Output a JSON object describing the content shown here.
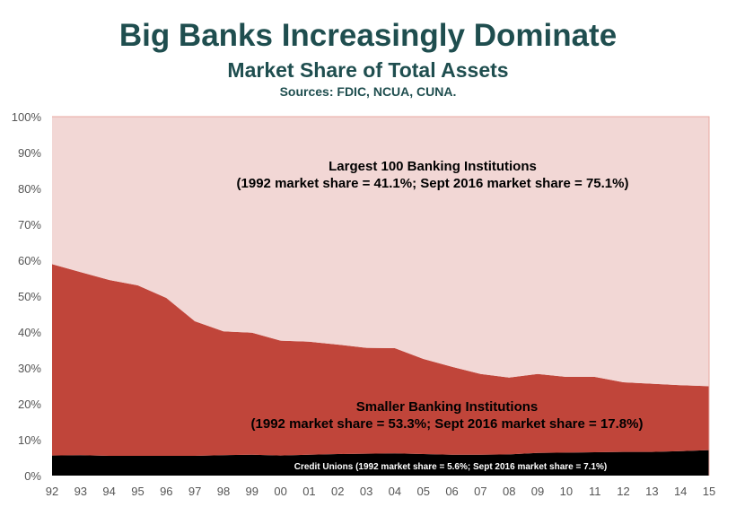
{
  "header": {
    "title": "Big Banks Increasingly Dominate",
    "subtitle": "Market Share of Total Assets",
    "sources": "Sources: FDIC, NCUA, CUNA."
  },
  "colors": {
    "largest": "#f2d7d5",
    "smaller": "#c0453a",
    "credit_unions": "#000000",
    "axis_text": "#555555",
    "title": "#1f4e4f"
  },
  "chart_data": {
    "type": "area",
    "stacked": true,
    "title": "Big Banks Increasingly Dominate",
    "subtitle": "Market Share of Total Assets",
    "categories": [
      "92",
      "93",
      "94",
      "95",
      "96",
      "97",
      "98",
      "99",
      "00",
      "01",
      "02",
      "03",
      "04",
      "05",
      "06",
      "07",
      "08",
      "09",
      "10",
      "11",
      "12",
      "13",
      "14",
      "15"
    ],
    "ylim": [
      0,
      100
    ],
    "yticks": [
      "0%",
      "10%",
      "20%",
      "30%",
      "40%",
      "50%",
      "60%",
      "70%",
      "80%",
      "90%",
      "100%"
    ],
    "series": [
      {
        "key": "credit_unions",
        "name": "Credit Unions",
        "values": [
          5.6,
          5.7,
          5.5,
          5.5,
          5.5,
          5.5,
          5.7,
          5.8,
          5.6,
          5.8,
          6.0,
          6.1,
          6.2,
          6.0,
          5.8,
          5.8,
          5.9,
          6.3,
          6.4,
          6.5,
          6.6,
          6.6,
          6.8,
          7.1
        ]
      },
      {
        "key": "smaller",
        "name": "Smaller Banking Institutions",
        "values": [
          53.3,
          51.0,
          49.0,
          47.5,
          44.0,
          37.5,
          34.5,
          34.0,
          32.0,
          31.5,
          30.5,
          29.5,
          29.3,
          26.5,
          24.5,
          22.5,
          21.4,
          22.0,
          21.1,
          21.0,
          19.4,
          19.0,
          18.4,
          17.8
        ]
      },
      {
        "key": "largest",
        "name": "Largest 100 Banking Institutions",
        "values": [
          41.1,
          43.3,
          45.5,
          47.0,
          50.5,
          57.0,
          59.8,
          60.2,
          62.4,
          62.7,
          63.5,
          64.4,
          64.5,
          67.5,
          69.7,
          71.7,
          72.7,
          71.7,
          72.5,
          72.5,
          74.0,
          74.4,
          74.8,
          75.1
        ]
      }
    ],
    "annotations": {
      "largest_line1": "Largest 100 Banking Institutions",
      "largest_line2": "(1992 market share = 41.1%; Sept 2016 market share = 75.1%)",
      "smaller_line1": "Smaller Banking Institutions",
      "smaller_line2": "(1992 market share = 53.3%; Sept 2016 market share = 17.8%)",
      "credit_unions": "Credit Unions (1992 market share = 5.6%; Sept 2016 market share = 7.1%)"
    }
  }
}
